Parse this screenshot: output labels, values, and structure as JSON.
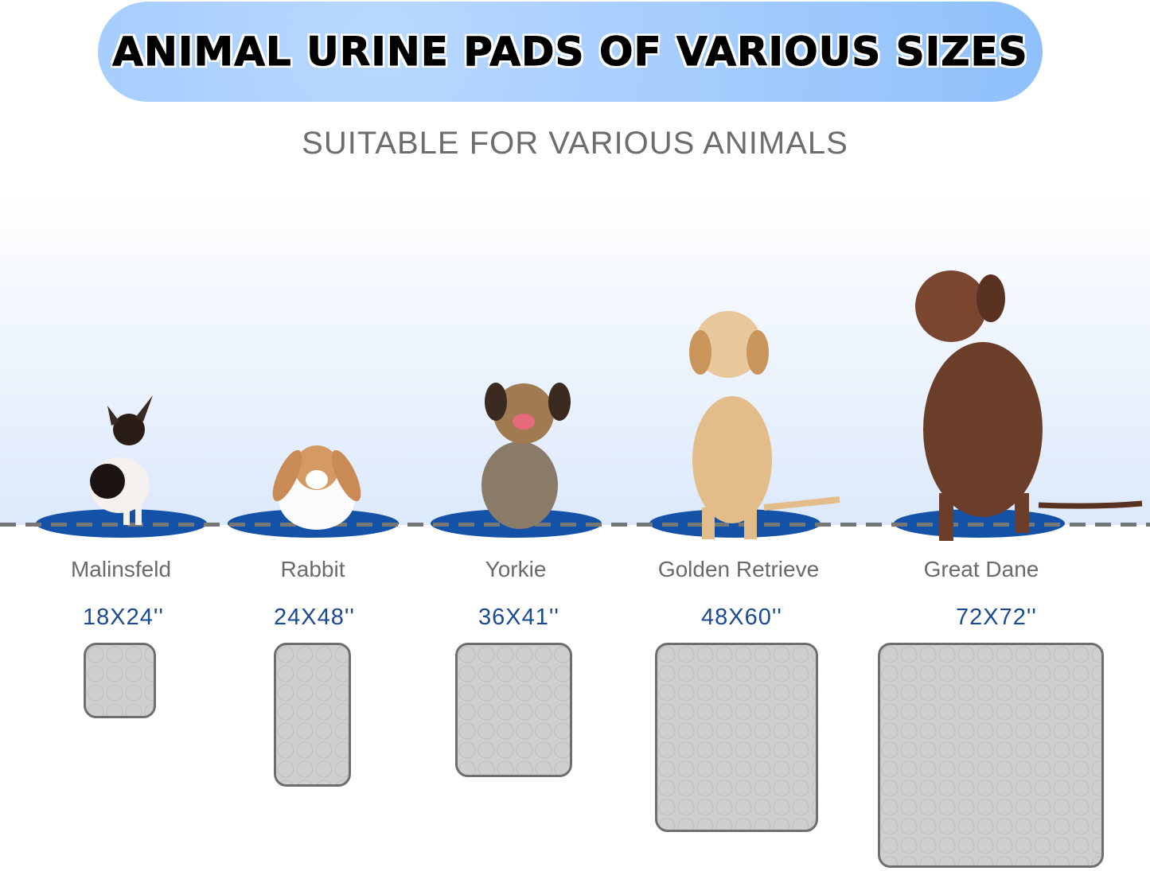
{
  "banner": {
    "title": "ANIMAL URINE PADS OF VARIOUS SIZES"
  },
  "subtitle": "SUITABLE FOR VARIOUS ANIMALS",
  "colors": {
    "banner": "#8fc0fb",
    "pad_base": "#1452a8",
    "size_text": "#1a4a92",
    "label_text": "#6a6a6a"
  },
  "animals": [
    {
      "label": "Malinsfeld",
      "size": "18X24''"
    },
    {
      "label": "Rabbit",
      "size": "24X48''"
    },
    {
      "label": "Yorkie",
      "size": "36X41''"
    },
    {
      "label": "Golden Retrieve",
      "size": "48X60''"
    },
    {
      "label": "Great Dane",
      "size": "72X72''"
    }
  ]
}
